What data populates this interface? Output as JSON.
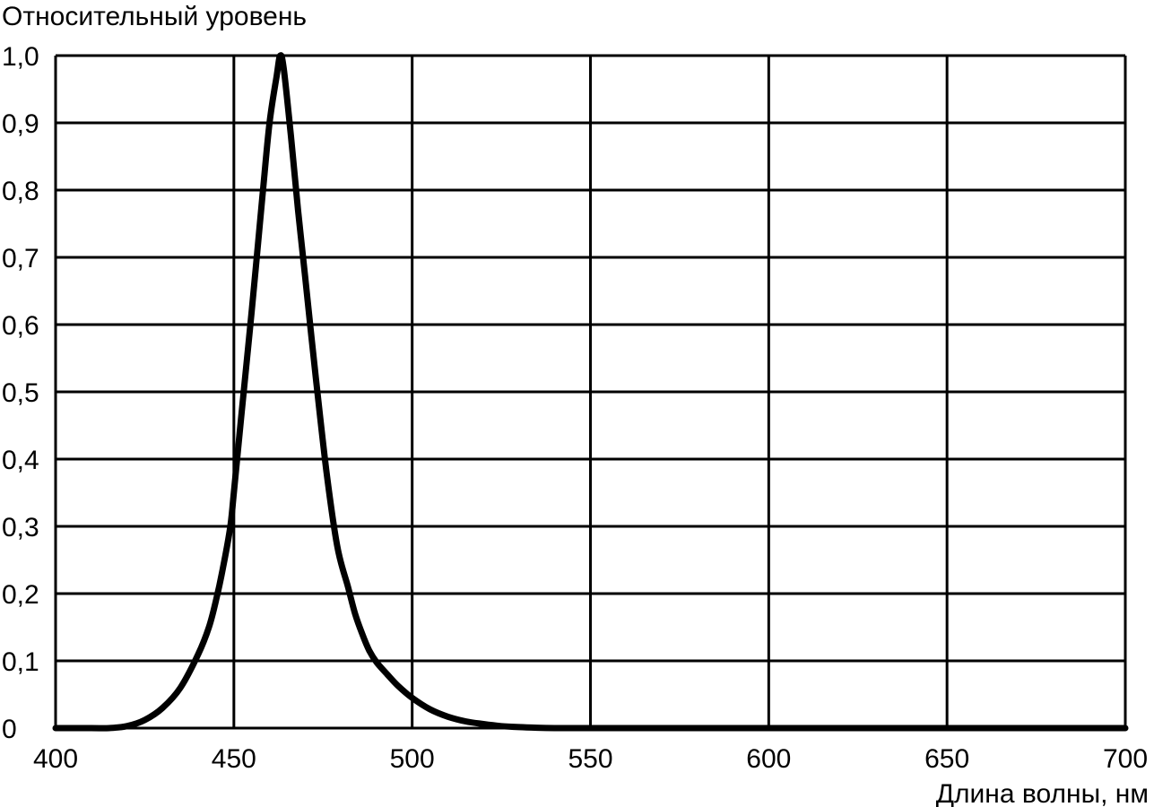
{
  "chart_data": {
    "type": "line",
    "title": "",
    "ylabel": "Относительный уровень",
    "xlabel": "Длина волны, нм",
    "xlim": [
      400,
      700
    ],
    "ylim": [
      0,
      1.0
    ],
    "grid": true,
    "x_ticks": [
      400,
      450,
      500,
      550,
      600,
      650,
      700
    ],
    "x_tick_labels": [
      "400",
      "450",
      "500",
      "550",
      "600",
      "650",
      "700"
    ],
    "y_ticks": [
      0,
      0.1,
      0.2,
      0.3,
      0.4,
      0.5,
      0.6,
      0.7,
      0.8,
      0.9,
      1.0
    ],
    "y_tick_labels": [
      "0",
      "0,1",
      "0,2",
      "0,3",
      "0,4",
      "0,5",
      "0,6",
      "0,7",
      "0,8",
      "0,9",
      "1,0"
    ],
    "line_color": "#000000",
    "series": [
      {
        "x": [
          400,
          410,
          415,
          420,
          425,
          430,
          435,
          440,
          443,
          445,
          447,
          449,
          450,
          452,
          455,
          458,
          460,
          462,
          463,
          464,
          466,
          468,
          470,
          473,
          476,
          479,
          482,
          484,
          486,
          488,
          490,
          493,
          496,
          500,
          505,
          510,
          515,
          520,
          525,
          530,
          535,
          540,
          550,
          600,
          650,
          700
        ],
        "y": [
          0.0,
          0.0,
          0.0,
          0.003,
          0.012,
          0.03,
          0.06,
          0.11,
          0.15,
          0.19,
          0.24,
          0.3,
          0.35,
          0.46,
          0.62,
          0.79,
          0.9,
          0.97,
          1.0,
          0.98,
          0.88,
          0.77,
          0.67,
          0.52,
          0.38,
          0.27,
          0.21,
          0.17,
          0.14,
          0.115,
          0.098,
          0.08,
          0.063,
          0.045,
          0.028,
          0.017,
          0.01,
          0.006,
          0.003,
          0.0015,
          0.0005,
          0.0,
          0.0,
          0.0,
          0.0,
          0.0
        ]
      }
    ]
  }
}
